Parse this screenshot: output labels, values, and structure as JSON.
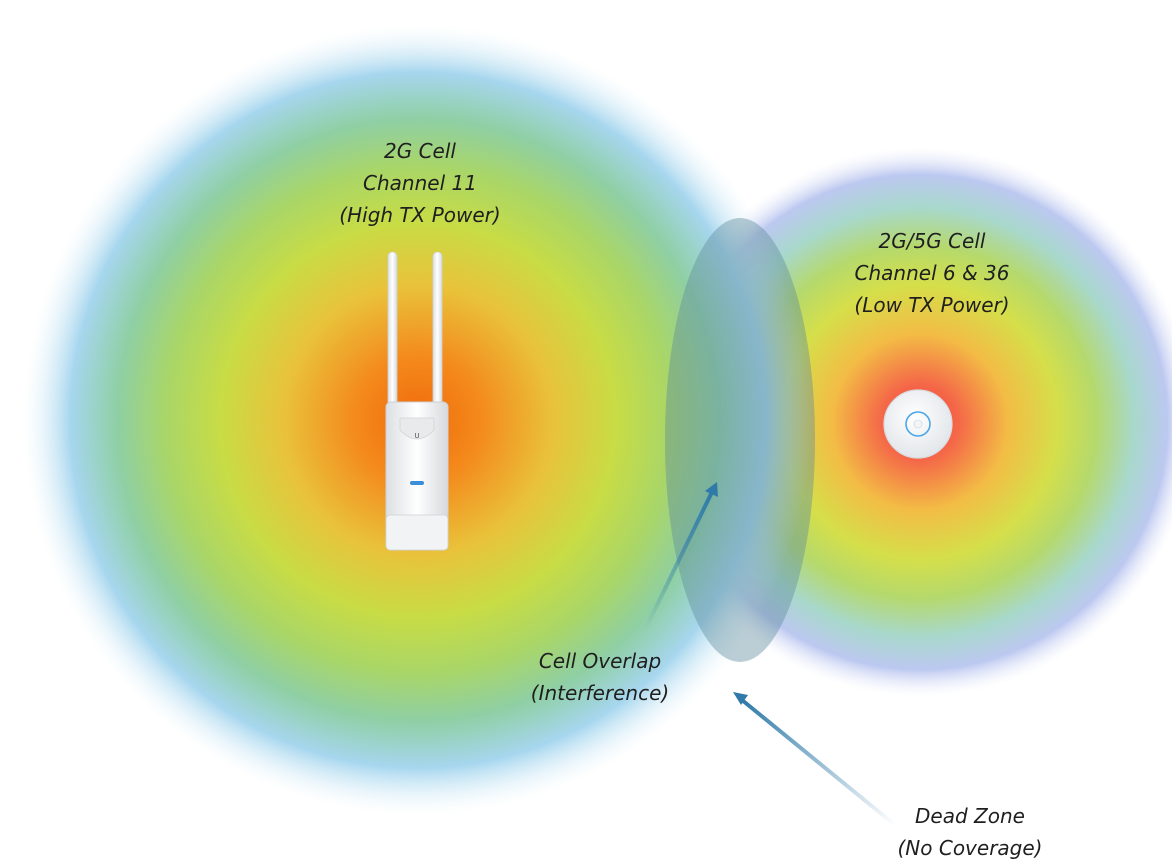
{
  "labels": {
    "cell_2g": {
      "line1": "2G Cell",
      "line2": "Channel 11",
      "line3": "(High TX Power)"
    },
    "cell_2g5g": {
      "line1": "2G/5G Cell",
      "line2": "Channel 6 & 36",
      "line3": "(Low TX Power)"
    },
    "overlap": {
      "line1": "Cell Overlap",
      "line2": "(Interference)"
    },
    "dead_zone": {
      "line1": "Dead Zone",
      "line2": "(No Coverage)"
    }
  },
  "devices": {
    "outdoor_ap": {
      "icon": "outdoor-access-point-icon"
    },
    "ceiling_ap": {
      "icon": "ceiling-access-point-icon"
    }
  },
  "colors": {
    "core": "#f06a0c",
    "core_small": "#f04a3a",
    "mid": "#b8d848",
    "outer": "#9ad0ec",
    "overlap_fill": "#5e8a9a",
    "arrow": "#2f7aa8"
  }
}
